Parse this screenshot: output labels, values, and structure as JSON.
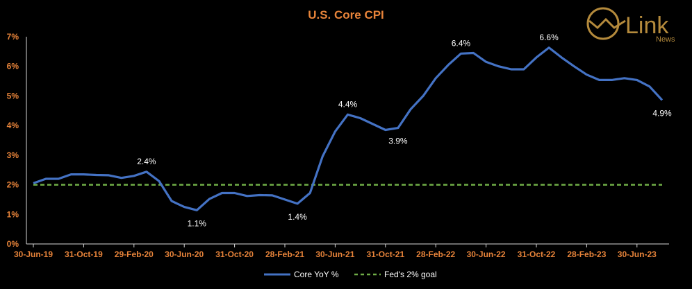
{
  "logo": {
    "text": "Link",
    "subtext": "News",
    "color": "#b48a3c"
  },
  "chart_data": {
    "type": "line",
    "title": "U.S. Core CPI",
    "ylim": [
      0,
      7
    ],
    "yticks": [
      0,
      1,
      2,
      3,
      4,
      5,
      6,
      7
    ],
    "ytick_labels": [
      "0%",
      "1%",
      "2%",
      "3%",
      "4%",
      "5%",
      "6%",
      "7%"
    ],
    "xtick_labels": [
      "30-Jun-19",
      "31-Oct-19",
      "29-Feb-20",
      "30-Jun-20",
      "31-Oct-20",
      "28-Feb-21",
      "30-Jun-21",
      "31-Oct-21",
      "28-Feb-22",
      "30-Jun-22",
      "31-Oct-22",
      "28-Feb-23",
      "30-Jun-23"
    ],
    "xtick_positions": [
      0,
      4,
      8,
      12,
      16,
      20,
      24,
      28,
      32,
      36,
      40,
      44,
      48
    ],
    "grid": false,
    "legend_position": "bottom",
    "series": [
      {
        "name": "Core YoY %",
        "color": "#4472c4",
        "style": "solid",
        "values": [
          2.05,
          2.2,
          2.2,
          2.35,
          2.35,
          2.33,
          2.32,
          2.23,
          2.3,
          2.44,
          2.12,
          1.45,
          1.25,
          1.14,
          1.52,
          1.72,
          1.72,
          1.62,
          1.65,
          1.64,
          1.5,
          1.36,
          1.72,
          2.96,
          3.8,
          4.37,
          4.25,
          4.05,
          3.85,
          3.92,
          4.55,
          5.0,
          5.6,
          6.05,
          6.43,
          6.45,
          6.15,
          6.0,
          5.9,
          5.9,
          6.3,
          6.63,
          6.3,
          6.0,
          5.72,
          5.54,
          5.54,
          5.6,
          5.54,
          5.32,
          4.86
        ]
      },
      {
        "name": "Fed's 2% goal",
        "color": "#70ad47",
        "style": "dashed",
        "values": [
          2,
          2,
          2,
          2,
          2,
          2,
          2,
          2,
          2,
          2,
          2,
          2,
          2,
          2,
          2,
          2,
          2,
          2,
          2,
          2,
          2,
          2,
          2,
          2,
          2,
          2,
          2,
          2,
          2,
          2,
          2,
          2,
          2,
          2,
          2,
          2,
          2,
          2,
          2,
          2,
          2,
          2,
          2,
          2,
          2,
          2,
          2,
          2,
          2,
          2,
          2
        ]
      }
    ],
    "annotations": [
      {
        "index": 9,
        "label": "2.4%",
        "pos": "above"
      },
      {
        "index": 13,
        "label": "1.1%",
        "pos": "below"
      },
      {
        "index": 21,
        "label": "1.4%",
        "pos": "below"
      },
      {
        "index": 25,
        "label": "4.4%",
        "pos": "above"
      },
      {
        "index": 29,
        "label": "3.9%",
        "pos": "below"
      },
      {
        "index": 34,
        "label": "6.4%",
        "pos": "above"
      },
      {
        "index": 41,
        "label": "6.6%",
        "pos": "above"
      },
      {
        "index": 50,
        "label": "4.9%",
        "pos": "below"
      }
    ]
  }
}
